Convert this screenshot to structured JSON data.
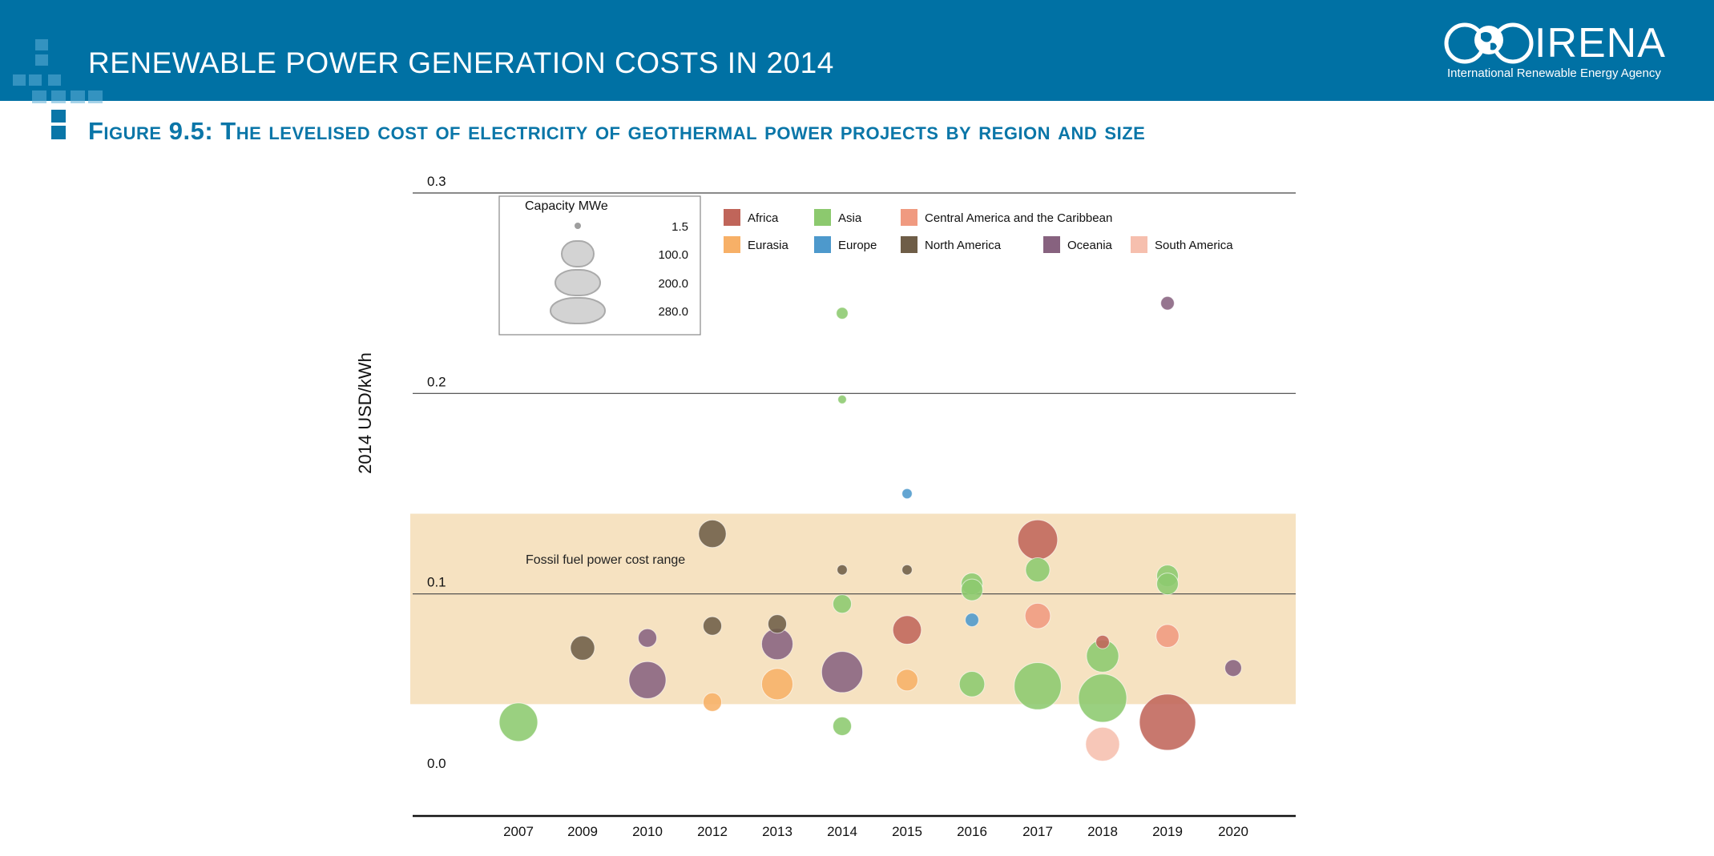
{
  "header": {
    "title": "RENEWABLE POWER GENERATION COSTS IN 2014",
    "logo_text": "IRENA",
    "logo_subtitle": "International Renewable Energy Agency"
  },
  "figure_title": "Figure 9.5: The levelised cost of electricity of geothermal power projects by region and size",
  "colors": {
    "header_bg": "#0071a4",
    "fossil_band": "#f6e2c1",
    "Africa": "#c0655a",
    "Asia": "#8cc96e",
    "Central America and the Caribbean": "#f09a80",
    "Eurasia": "#f7b067",
    "Europe": "#4d99cc",
    "North America": "#6e5d47",
    "Oceania": "#87627f",
    "South America": "#f6bfae"
  },
  "chart_data": {
    "type": "scatter",
    "title": "",
    "ylabel": "2014 USD/kWh",
    "xlabel": "",
    "ylim": [
      0,
      0.3
    ],
    "yticks": [
      "0.0",
      "0.1",
      "0.2",
      "0.3"
    ],
    "categories": [
      "2007",
      "2009",
      "2010",
      "2012",
      "2013",
      "2014",
      "2015",
      "2016",
      "2017",
      "2018",
      "2019",
      "2020"
    ],
    "band": {
      "label": "Fossil fuel power cost range",
      "from": 0.045,
      "to": 0.14
    },
    "size_legend": {
      "title": "Capacity MWe",
      "values": [
        "1.5",
        "100.0",
        "200.0",
        "280.0"
      ]
    },
    "legend": [
      "Africa",
      "Asia",
      "Central America and the Caribbean",
      "Eurasia",
      "Europe",
      "North America",
      "Oceania",
      "South America"
    ],
    "points": [
      {
        "x": "2007",
        "y": 0.036,
        "cap": 120,
        "region": "Asia"
      },
      {
        "x": "2009",
        "y": 0.073,
        "cap": 40,
        "region": "North America"
      },
      {
        "x": "2010",
        "y": 0.078,
        "cap": 20,
        "region": "Oceania"
      },
      {
        "x": "2010",
        "y": 0.057,
        "cap": 110,
        "region": "Oceania"
      },
      {
        "x": "2012",
        "y": 0.13,
        "cap": 55,
        "region": "North America"
      },
      {
        "x": "2012",
        "y": 0.084,
        "cap": 20,
        "region": "North America"
      },
      {
        "x": "2012",
        "y": 0.046,
        "cap": 20,
        "region": "Eurasia"
      },
      {
        "x": "2013",
        "y": 0.085,
        "cap": 20,
        "region": "North America"
      },
      {
        "x": "2013",
        "y": 0.075,
        "cap": 75,
        "region": "Oceania"
      },
      {
        "x": "2013",
        "y": 0.055,
        "cap": 75,
        "region": "Eurasia"
      },
      {
        "x": "2014",
        "y": 0.24,
        "cap": 5,
        "region": "Asia"
      },
      {
        "x": "2014",
        "y": 0.197,
        "cap": 1.5,
        "region": "Asia"
      },
      {
        "x": "2014",
        "y": 0.112,
        "cap": 3,
        "region": "North America"
      },
      {
        "x": "2014",
        "y": 0.095,
        "cap": 20,
        "region": "Asia"
      },
      {
        "x": "2014",
        "y": 0.061,
        "cap": 140,
        "region": "Oceania"
      },
      {
        "x": "2014",
        "y": 0.034,
        "cap": 20,
        "region": "Asia"
      },
      {
        "x": "2015",
        "y": 0.15,
        "cap": 3,
        "region": "Europe"
      },
      {
        "x": "2015",
        "y": 0.112,
        "cap": 3,
        "region": "North America"
      },
      {
        "x": "2015",
        "y": 0.082,
        "cap": 60,
        "region": "Africa"
      },
      {
        "x": "2015",
        "y": 0.057,
        "cap": 30,
        "region": "Eurasia"
      },
      {
        "x": "2016",
        "y": 0.105,
        "cap": 30,
        "region": "Asia"
      },
      {
        "x": "2016",
        "y": 0.102,
        "cap": 30,
        "region": "Asia"
      },
      {
        "x": "2016",
        "y": 0.087,
        "cap": 8,
        "region": "Europe"
      },
      {
        "x": "2016",
        "y": 0.055,
        "cap": 45,
        "region": "Asia"
      },
      {
        "x": "2017",
        "y": 0.127,
        "cap": 130,
        "region": "Africa"
      },
      {
        "x": "2017",
        "y": 0.112,
        "cap": 40,
        "region": "Asia"
      },
      {
        "x": "2017",
        "y": 0.089,
        "cap": 45,
        "region": "Central America and the Caribbean"
      },
      {
        "x": "2017",
        "y": 0.054,
        "cap": 190,
        "region": "Asia"
      },
      {
        "x": "2018",
        "y": 0.076,
        "cap": 8,
        "region": "Africa"
      },
      {
        "x": "2018",
        "y": 0.069,
        "cap": 80,
        "region": "Asia"
      },
      {
        "x": "2018",
        "y": 0.048,
        "cap": 200,
        "region": "Asia"
      },
      {
        "x": "2018",
        "y": 0.025,
        "cap": 90,
        "region": "South America"
      },
      {
        "x": "2019",
        "y": 0.245,
        "cap": 8,
        "region": "Oceania"
      },
      {
        "x": "2019",
        "y": 0.109,
        "cap": 30,
        "region": "Asia"
      },
      {
        "x": "2019",
        "y": 0.105,
        "cap": 30,
        "region": "Asia"
      },
      {
        "x": "2019",
        "y": 0.079,
        "cap": 35,
        "region": "Central America and the Caribbean"
      },
      {
        "x": "2019",
        "y": 0.036,
        "cap": 280,
        "region": "Africa"
      },
      {
        "x": "2020",
        "y": 0.063,
        "cap": 15,
        "region": "Oceania"
      }
    ]
  }
}
